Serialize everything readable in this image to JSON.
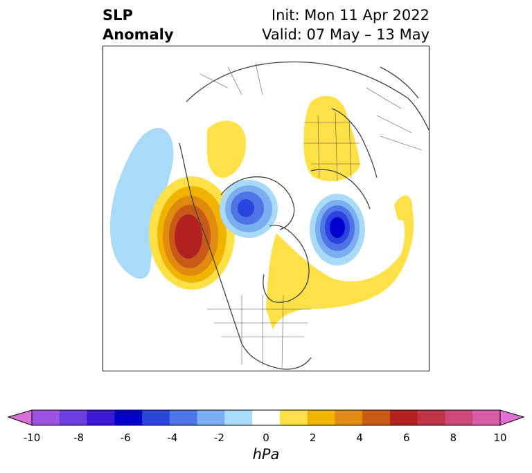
{
  "header": {
    "title_line1": "SLP",
    "title_line2": "Anomaly",
    "init": "Init: Mon 11 Apr 2022",
    "valid": "Valid: 07 May – 13 May"
  },
  "colorbar": {
    "label": "hPa",
    "ticks": [
      "-10",
      "-8",
      "-6",
      "-4",
      "-2",
      "0",
      "2",
      "4",
      "6",
      "8",
      "10"
    ],
    "colors": [
      "#da70d6",
      "#9e54e2",
      "#6a3ddc",
      "#3a18d8",
      "#0000cd",
      "#2a44e0",
      "#4f74e6",
      "#7aaef0",
      "#a9daf8",
      "#ffffff",
      "#ffe047",
      "#f0b400",
      "#e08a10",
      "#c85a18",
      "#b22222",
      "#c03448",
      "#cc4878",
      "#d65ca8",
      "#e070d6"
    ],
    "min": -10,
    "max": 10,
    "extend": "both"
  },
  "map": {
    "projection": "north-polar-stereographic",
    "features": [
      "coastlines",
      "country borders",
      "US state borders"
    ],
    "anomalies": [
      {
        "region": "North Pacific / Gulf of Alaska",
        "sign": "positive",
        "peak_hPa": 6
      },
      {
        "region": "Central North Pacific",
        "sign": "negative",
        "peak_hPa": -1
      },
      {
        "region": "Arctic Ocean north of Alaska",
        "sign": "negative",
        "peak_hPa": -4
      },
      {
        "region": "Northern Europe / Scandinavia",
        "sign": "negative",
        "peak_hPa": -6
      },
      {
        "region": "Western Russia / Ural",
        "sign": "positive",
        "peak_hPa": 1
      },
      {
        "region": "Eastern Canada / North Atlantic",
        "sign": "positive",
        "peak_hPa": 1
      }
    ]
  }
}
